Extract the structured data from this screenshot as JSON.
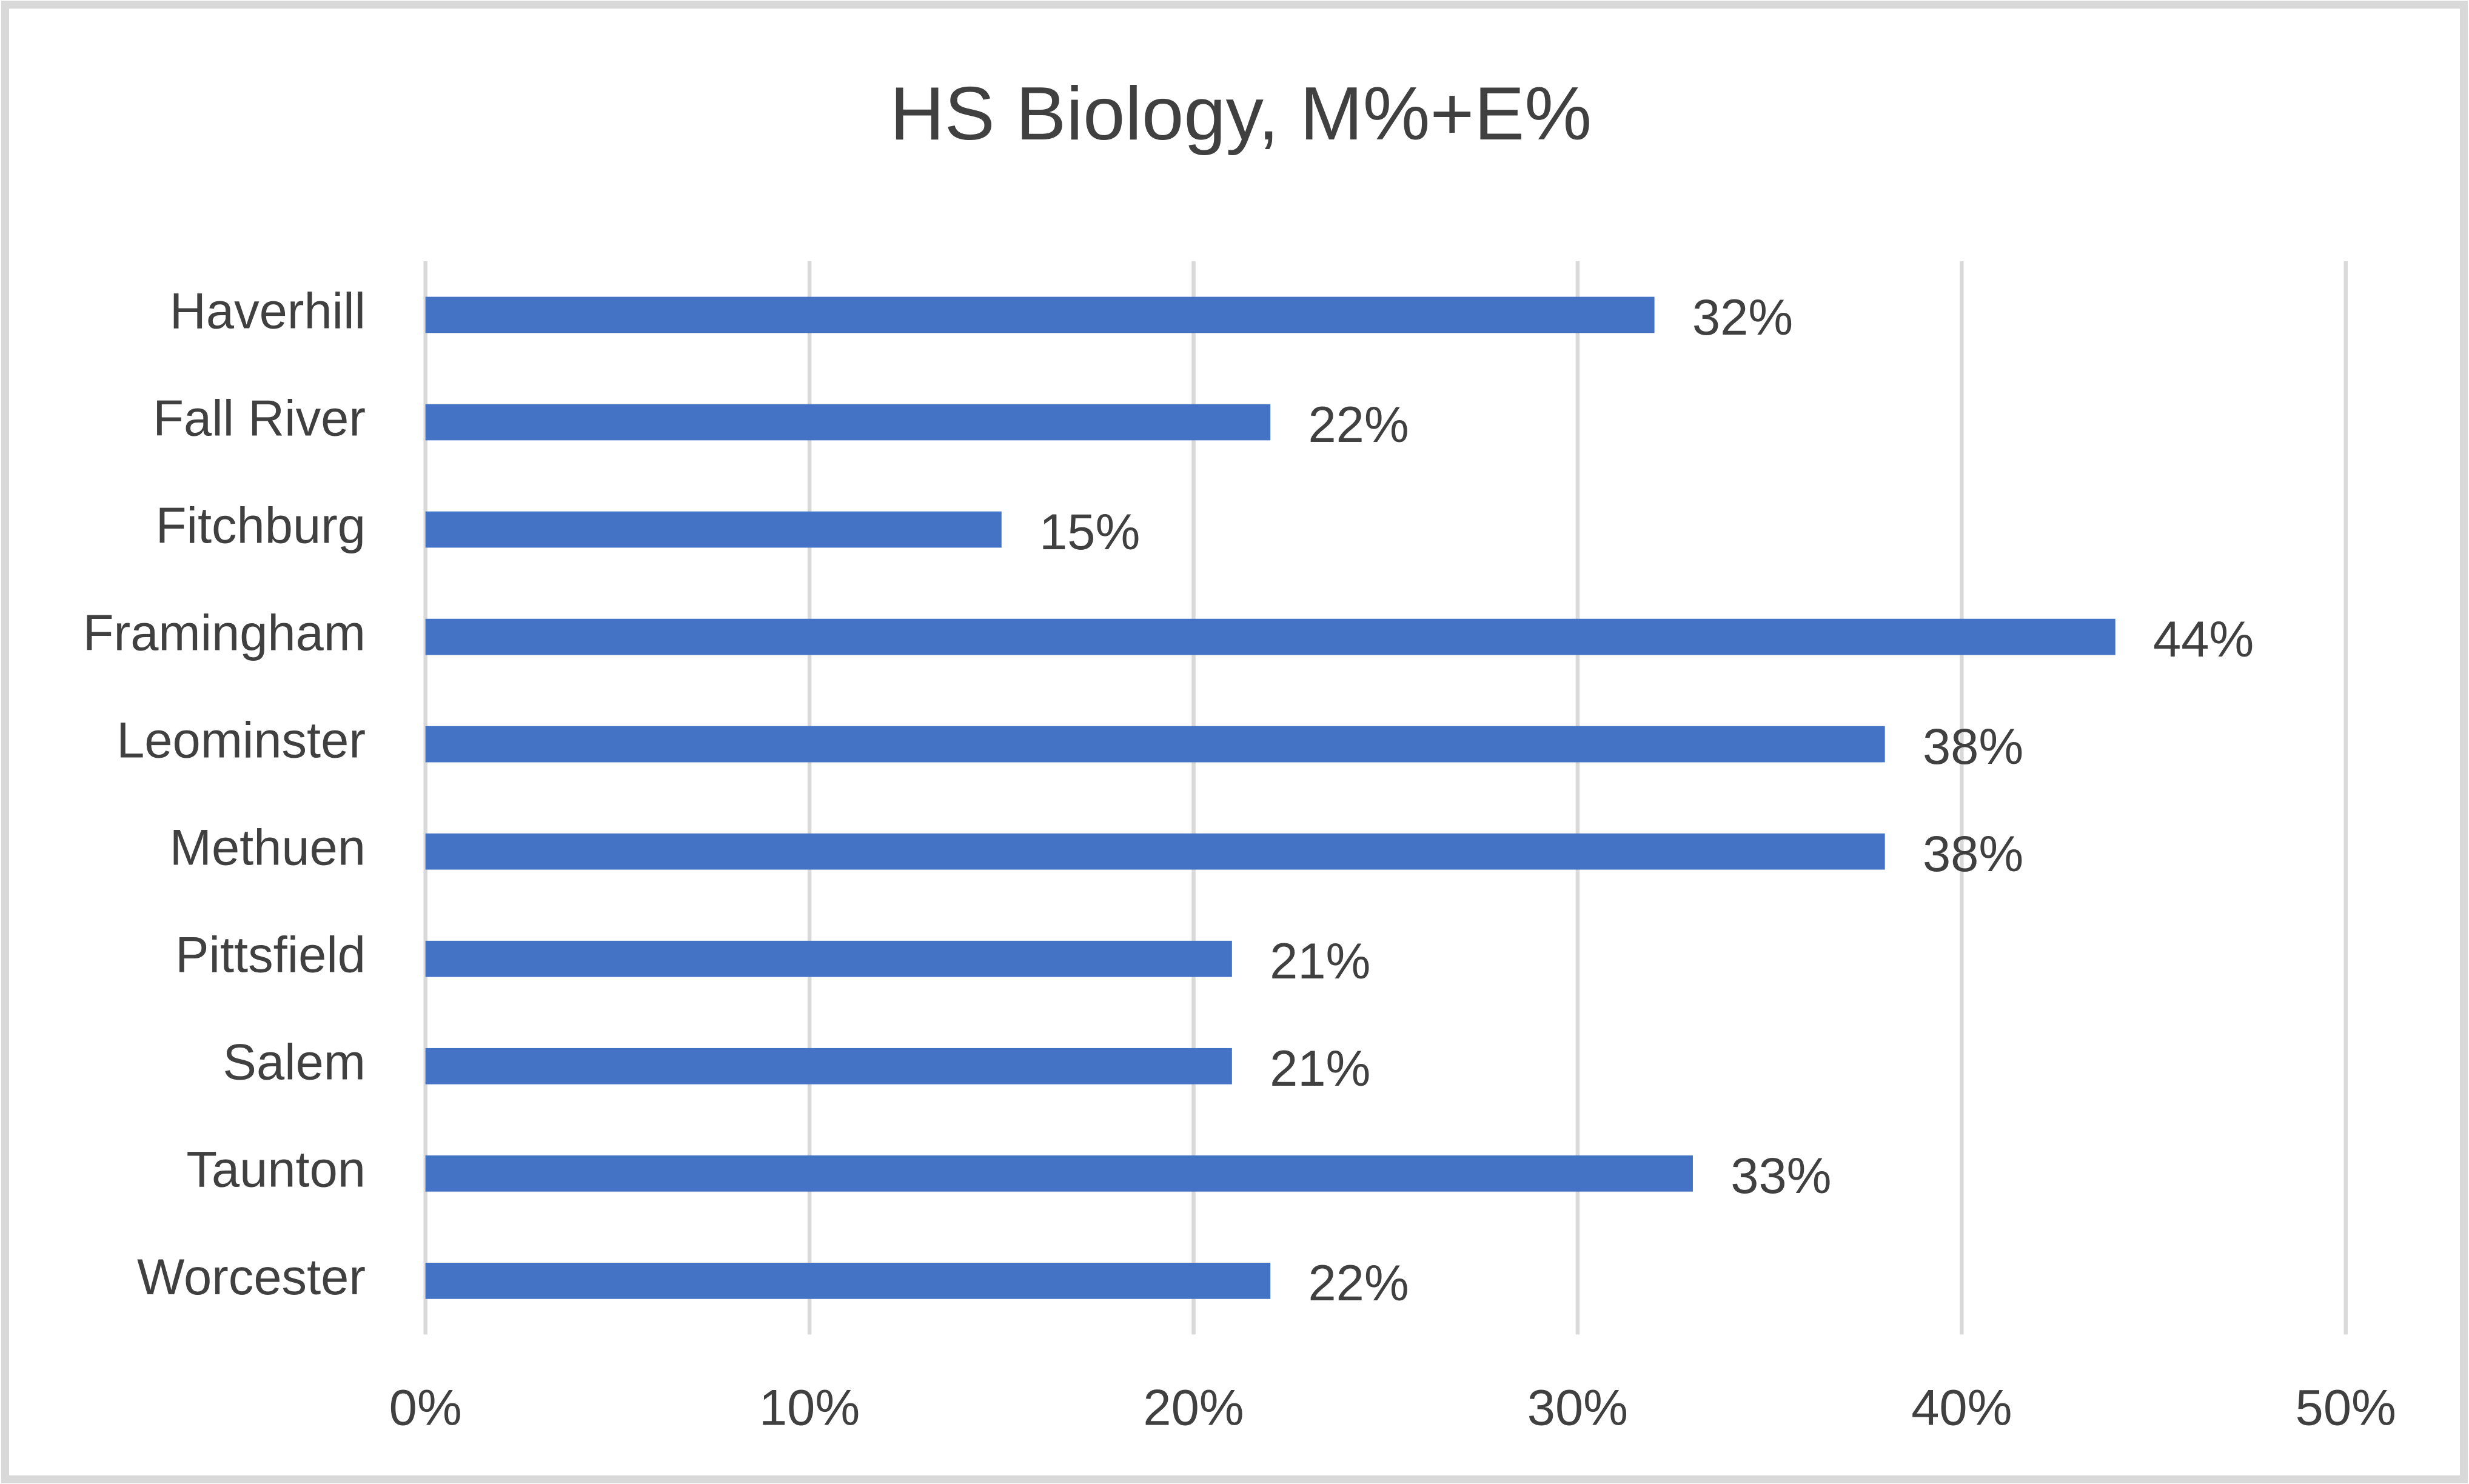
{
  "chart_data": {
    "type": "hbar",
    "title": "HS Biology, M%+E%",
    "categories": [
      "Haverhill",
      "Fall River",
      "Fitchburg",
      "Framingham",
      "Leominster",
      "Methuen",
      "Pittsfield",
      "Salem",
      "Taunton",
      "Worcester"
    ],
    "values": [
      32,
      22,
      15,
      44,
      38,
      38,
      21,
      21,
      33,
      22
    ],
    "value_labels": [
      "32%",
      "22%",
      "15%",
      "44%",
      "38%",
      "38%",
      "21%",
      "21%",
      "33%",
      "22%"
    ],
    "color": "#4472c4",
    "xlim": [
      0,
      50
    ],
    "xticks": [
      {
        "value": 0,
        "label": "0%"
      },
      {
        "value": 10,
        "label": "10%"
      },
      {
        "value": 20,
        "label": "20%"
      },
      {
        "value": 30,
        "label": "30%"
      },
      {
        "value": 40,
        "label": "40%"
      },
      {
        "value": 50,
        "label": "50%"
      }
    ],
    "grid": true
  }
}
